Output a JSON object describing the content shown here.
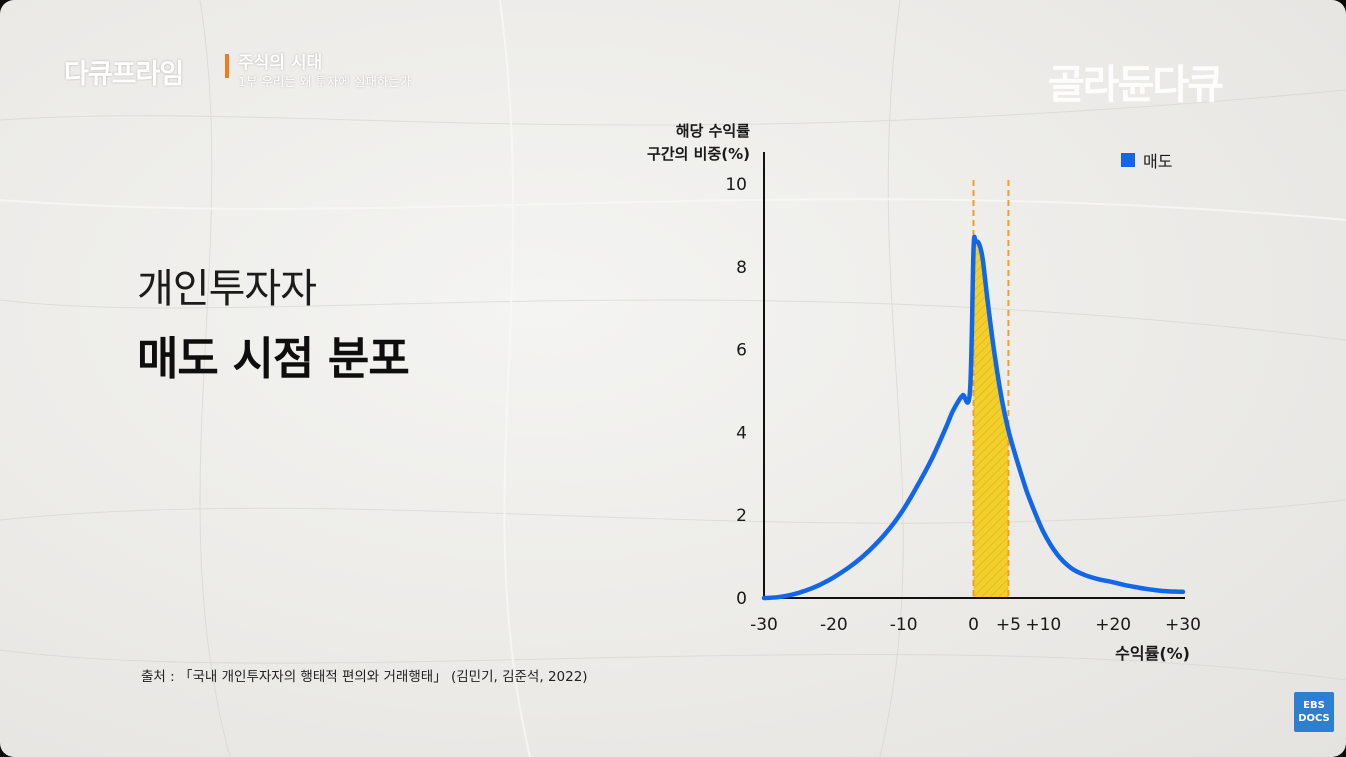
{
  "overlay": {
    "brand": "다큐프라임",
    "series_title": "주식의 시대",
    "episode_title": "1부 우리는 왜 투자에 실패하는가",
    "watermark": "골라듄다큐",
    "channel_logo_line1": "EBS",
    "channel_logo_line2": "DOCS"
  },
  "heading": {
    "line1": "개인투자자",
    "line2": "매도 시점 분포"
  },
  "source": "출처 : 「국내 개인투자자의 행태적 편의와 거래행태」 (김민기, 김준석, 2022)",
  "colors": {
    "series": "#1266e8",
    "highlight_fill": "#f2cf2a",
    "highlight_line": "#f0a020",
    "axis": "#111111",
    "accent_bar": "#f07c1e"
  },
  "chart_data": {
    "type": "line",
    "ylabel": "해당 수익률\n구간의 비중(%)",
    "xlabel": "수익률(%)",
    "xlim": [
      -30,
      30
    ],
    "ylim": [
      0,
      10
    ],
    "x_ticks": [
      "-30",
      "-20",
      "-10",
      "0",
      "+5",
      "+10",
      "+20",
      "+30"
    ],
    "x_tick_values": [
      -30,
      -20,
      -10,
      0,
      5,
      10,
      20,
      30
    ],
    "y_ticks": [
      "0",
      "2",
      "4",
      "6",
      "8",
      "10"
    ],
    "y_tick_values": [
      0,
      2,
      4,
      6,
      8,
      10
    ],
    "legend": {
      "placement": "top-right"
    },
    "highlight_band": [
      0,
      5
    ],
    "series": [
      {
        "name": "매도",
        "x": [
          -30,
          -28,
          -26,
          -24,
          -22,
          -20,
          -18,
          -16,
          -14,
          -12,
          -10,
          -8,
          -6,
          -4,
          -3,
          -2,
          -1.5,
          -0.5,
          0,
          0.3,
          0.8,
          1.3,
          2,
          3,
          4,
          5,
          6,
          7,
          8,
          10,
          12,
          14,
          16,
          18,
          20,
          22,
          24,
          26,
          28,
          30
        ],
        "y": [
          0,
          0.02,
          0.08,
          0.18,
          0.32,
          0.5,
          0.72,
          0.98,
          1.3,
          1.68,
          2.15,
          2.72,
          3.35,
          4.1,
          4.5,
          4.8,
          4.9,
          5.0,
          8.4,
          8.6,
          8.55,
          8.2,
          7.2,
          5.9,
          4.85,
          4.05,
          3.45,
          2.9,
          2.4,
          1.6,
          1.05,
          0.72,
          0.55,
          0.45,
          0.38,
          0.3,
          0.24,
          0.19,
          0.16,
          0.15
        ]
      }
    ]
  }
}
